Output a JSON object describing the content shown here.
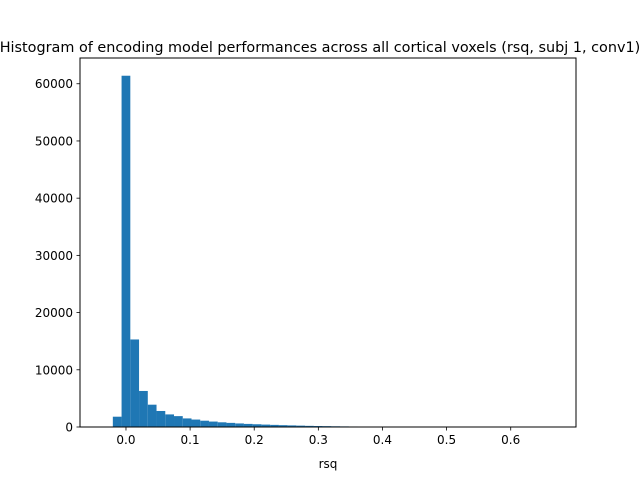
{
  "chart_data": {
    "type": "bar",
    "title": "Histogram of encoding model performances across all cortical voxels (rsq, subj 1, conv1)",
    "xlabel": "rsq",
    "ylabel": "",
    "xlim": [
      -0.0717,
      0.7018
    ],
    "ylim": [
      0,
      64500
    ],
    "xticks": [
      0.0,
      0.1,
      0.2,
      0.3,
      0.4,
      0.5,
      0.6
    ],
    "xtick_labels": [
      "0.0",
      "0.1",
      "0.2",
      "0.3",
      "0.4",
      "0.5",
      "0.6"
    ],
    "yticks": [
      0,
      10000,
      20000,
      30000,
      40000,
      50000,
      60000
    ],
    "ytick_labels": [
      "0",
      "10000",
      "20000",
      "30000",
      "40000",
      "50000",
      "60000"
    ],
    "bin_start": -0.0205,
    "bin_width": 0.01363,
    "values": [
      1800,
      61400,
      15300,
      6300,
      3900,
      2800,
      2200,
      1900,
      1500,
      1300,
      1100,
      950,
      820,
      720,
      620,
      540,
      480,
      420,
      370,
      320,
      280,
      240,
      200,
      170,
      150,
      125,
      105,
      90,
      75,
      60,
      50,
      42,
      35,
      28,
      22,
      18,
      14,
      11,
      9,
      7,
      6,
      5,
      4,
      3,
      3,
      2,
      2,
      1,
      1,
      1
    ],
    "bar_color": "#1f77b4",
    "grid": false,
    "legend": "none"
  }
}
